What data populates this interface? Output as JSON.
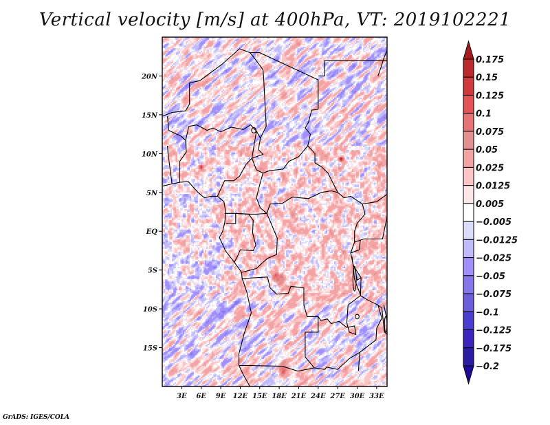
{
  "app": "GrADS",
  "credit": "GrADS: IGES/COLA",
  "chart_data": {
    "type": "heatmap",
    "title": "Vertical velocity [m/s] at 400hPa, VT: 2019102221",
    "variable": "Vertical velocity",
    "units": "m/s",
    "level": "400hPa",
    "valid_time": "2019102221",
    "xlabel": "",
    "ylabel": "",
    "xlim": [
      0,
      34.6
    ],
    "ylim": [
      -20,
      25
    ],
    "grid": false,
    "x_ticks": [
      {
        "value": 3,
        "label": "3E"
      },
      {
        "value": 6,
        "label": "6E"
      },
      {
        "value": 9,
        "label": "9E"
      },
      {
        "value": 12,
        "label": "12E"
      },
      {
        "value": 15,
        "label": "15E"
      },
      {
        "value": 18,
        "label": "18E"
      },
      {
        "value": 21,
        "label": "21E"
      },
      {
        "value": 24,
        "label": "24E"
      },
      {
        "value": 27,
        "label": "27E"
      },
      {
        "value": 30,
        "label": "30E"
      },
      {
        "value": 33,
        "label": "33E"
      }
    ],
    "y_ticks": [
      {
        "value": 20,
        "label": "20N"
      },
      {
        "value": 15,
        "label": "15N"
      },
      {
        "value": 10,
        "label": "10N"
      },
      {
        "value": 5,
        "label": "5N"
      },
      {
        "value": 0,
        "label": "EQ"
      },
      {
        "value": -5,
        "label": "5S"
      },
      {
        "value": -10,
        "label": "10S"
      },
      {
        "value": -15,
        "label": "15S"
      }
    ],
    "colorbar": {
      "placement": "right",
      "levels": [
        0.175,
        0.15,
        0.125,
        0.1,
        0.075,
        0.05,
        0.025,
        0.0125,
        0.005,
        -0.005,
        -0.0125,
        -0.025,
        -0.05,
        -0.075,
        -0.1,
        -0.125,
        -0.175,
        -0.2
      ],
      "labels": [
        "0.175",
        "0.15",
        "0.125",
        "0.1",
        "0.075",
        "0.05",
        "0.025",
        "0.0125",
        "0.005",
        "−0.005",
        "−0.0125",
        "−0.025",
        "−0.05",
        "−0.075",
        "−0.1",
        "−0.125",
        "−0.175",
        "−0.2"
      ],
      "colors_top_to_bottom": [
        "#a61c1f",
        "#bb2a2c",
        "#cf3b3d",
        "#e45456",
        "#e67375",
        "#e38f92",
        "#f4a3a5",
        "#fbc5c6",
        "#fde6e6",
        "#ffffff",
        "#dcdcfb",
        "#c0b9fb",
        "#a18ffb",
        "#8576ea",
        "#6b5fdc",
        "#4a3ed0",
        "#3b25be",
        "#2b1ca4",
        "#1f0c9a"
      ]
    },
    "features": {
      "highlighted_maxima": [
        {
          "lon": 6.0,
          "lat": 8.3,
          "note": "compact dipole center"
        },
        {
          "lon": 27.5,
          "lat": 9.3,
          "note": "compact dipole center"
        },
        {
          "lon": 17.8,
          "lat": -6.0,
          "note": "strong ascent"
        },
        {
          "lon": 18.5,
          "lat": -18.0,
          "note": "strong ascent"
        }
      ],
      "dominant_band_orientation": "SW-NE streaks north of 12N and south of 8S"
    }
  }
}
